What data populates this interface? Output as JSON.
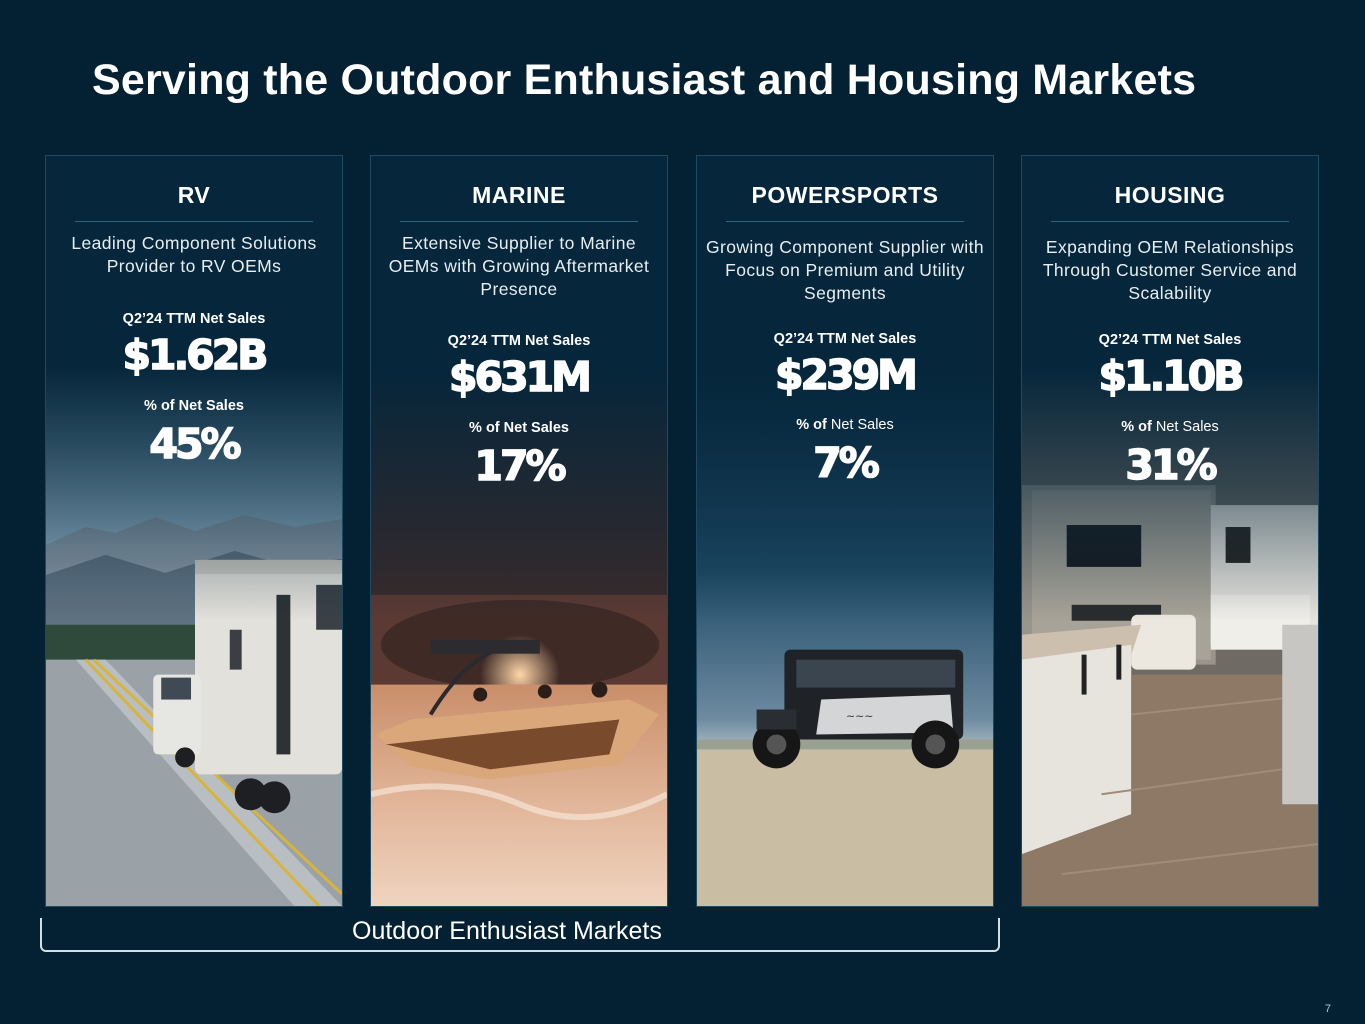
{
  "title": "Serving the Outdoor Enthusiast and Housing Markets",
  "segments": [
    {
      "name": "RV",
      "description": "Leading Component Solutions Provider to RV OEMs",
      "sales_label": "Q2’24 TTM Net Sales",
      "sales_value": "$1.62B",
      "pct_label_bold": "% of Net Sales",
      "pct_label_rest": "",
      "pct_value": "45%"
    },
    {
      "name": "MARINE",
      "description": "Extensive Supplier to Marine OEMs with Growing Aftermarket Presence",
      "sales_label": "Q2’24 TTM Net Sales",
      "sales_value": "$631M",
      "pct_label_bold": "% of Net Sales",
      "pct_label_rest": "",
      "pct_value": "17%"
    },
    {
      "name": "POWERSPORTS",
      "description": "Growing Component Supplier with Focus on Premium and Utility Segments",
      "sales_label": "Q2’24 TTM Net Sales",
      "sales_value": "$239M",
      "pct_label_bold": "% of",
      "pct_label_rest": " Net Sales",
      "pct_value": "7%"
    },
    {
      "name": "HOUSING",
      "description": "Expanding OEM Relationships Through Customer Service and Scalability",
      "sales_label": "Q2’24 TTM Net Sales",
      "sales_value": "$1.10B",
      "pct_label_bold": "% of",
      "pct_label_rest": " Net Sales",
      "pct_value": "31%"
    }
  ],
  "bracket_label": "Outdoor Enthusiast Markets",
  "page_number": "7"
}
